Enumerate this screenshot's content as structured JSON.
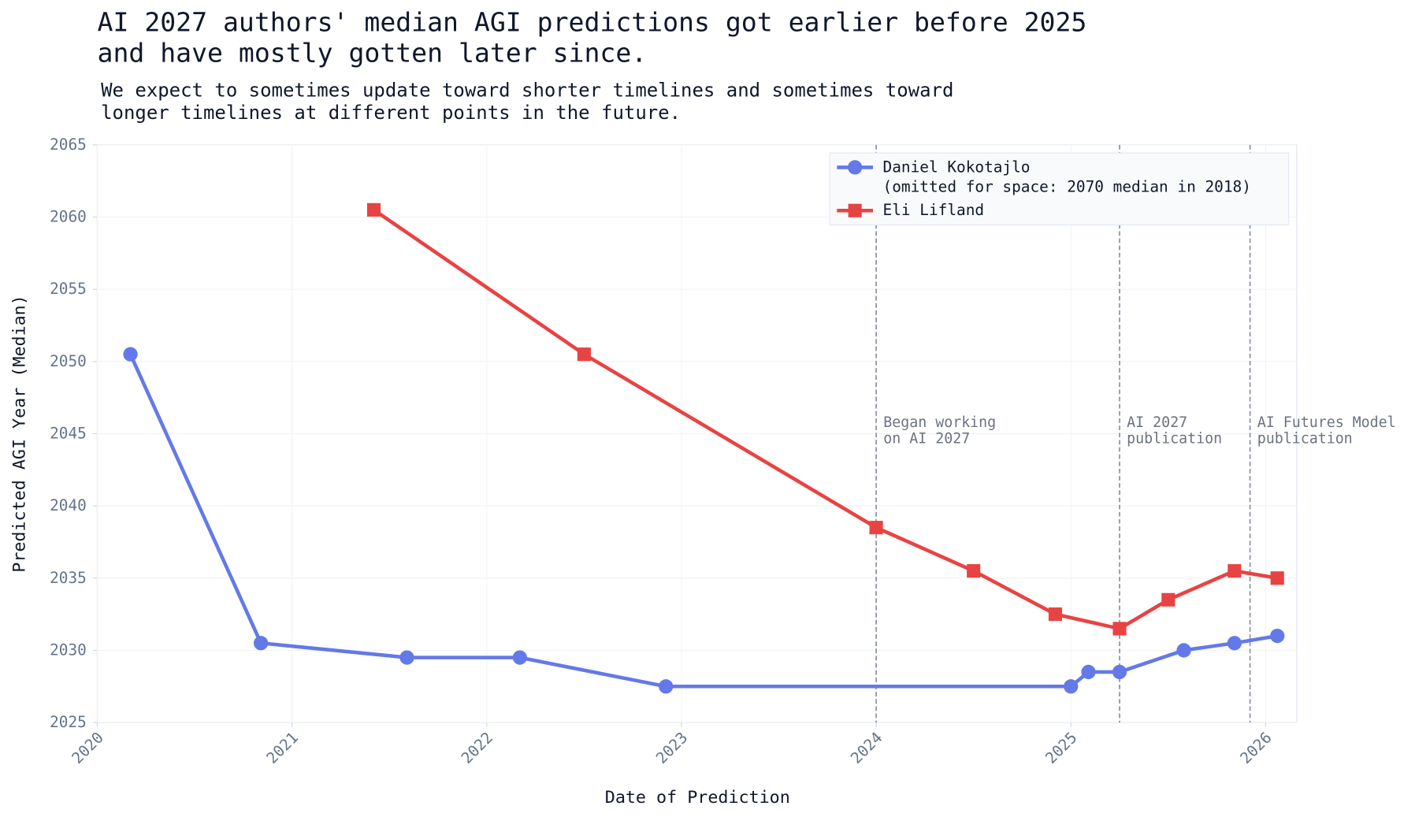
{
  "chart_data": {
    "type": "line",
    "title": "AI 2027 authors' median AGI predictions got earlier before 2025\nand have mostly gotten later since.",
    "subtitle": "We expect to sometimes update toward shorter timelines and sometimes toward\nlonger timelines at different points in the future.",
    "x_label": "Date of Prediction",
    "y_label": "Predicted AGI Year (Median)",
    "xlim": [
      2020,
      2026.16
    ],
    "ylim": [
      2025,
      2065
    ],
    "xticks": [
      2020,
      2021,
      2022,
      2023,
      2024,
      2025,
      2026
    ],
    "yticks": [
      2025,
      2030,
      2035,
      2040,
      2045,
      2050,
      2055,
      2060,
      2065
    ],
    "grid": true,
    "legend": "upper right",
    "series": [
      {
        "name": "Daniel Kokotajlo\n(omitted for space: 2070 median in 2018)",
        "color": "#6479e8",
        "marker": "circle",
        "x": [
          2020.17,
          2020.84,
          2021.59,
          2022.17,
          2022.92,
          2025.0,
          2025.09,
          2025.25,
          2025.58,
          2025.84,
          2026.06
        ],
        "values": [
          2050.5,
          2030.5,
          2029.5,
          2029.5,
          2027.5,
          2027.5,
          2028.5,
          2028.5,
          2030,
          2030.5,
          2031
        ]
      },
      {
        "name": "Eli Lifland",
        "color": "#e84343",
        "marker": "square",
        "x": [
          2021.42,
          2022.5,
          2024.0,
          2024.5,
          2024.92,
          2025.25,
          2025.5,
          2025.84,
          2026.06
        ],
        "values": [
          2060.5,
          2050.5,
          2038.5,
          2035.5,
          2032.5,
          2031.5,
          2033.5,
          2035.5,
          2035
        ]
      }
    ],
    "annotations": [
      {
        "x": 2024.0,
        "text": "Began working\non AI 2027"
      },
      {
        "x": 2025.25,
        "text": "AI 2027\npublication"
      },
      {
        "x": 2025.92,
        "text": "AI Futures Model\npublication"
      }
    ]
  }
}
